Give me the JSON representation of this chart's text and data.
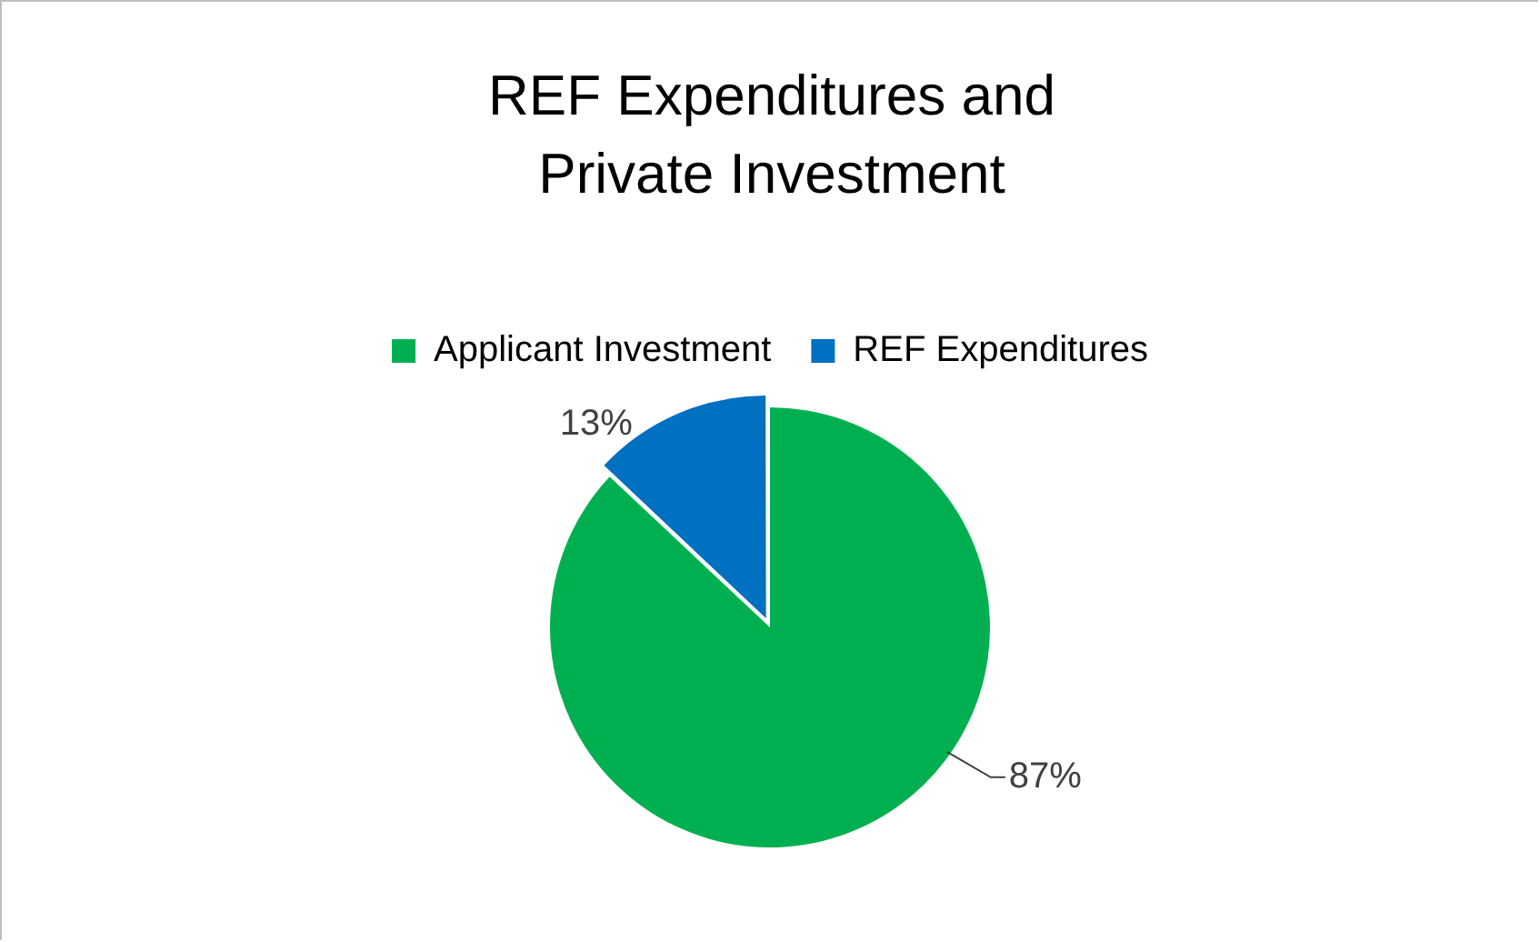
{
  "chart_data": {
    "type": "pie",
    "title": "REF Expenditures and Private Investment",
    "categories": [
      "Applicant Investment",
      "REF Expenditures"
    ],
    "values": [
      87,
      13
    ],
    "colors": [
      "#00b050",
      "#0070c0"
    ],
    "value_labels": [
      "87%",
      "13%"
    ],
    "legend": "top"
  }
}
